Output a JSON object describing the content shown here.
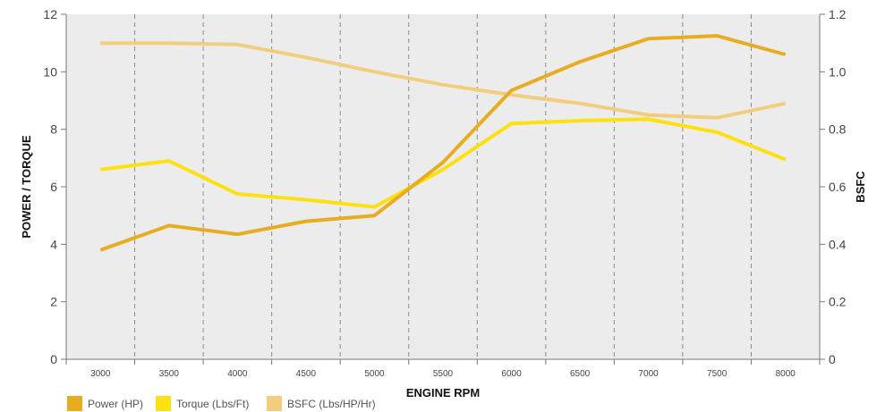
{
  "chart_data": {
    "type": "line",
    "xlabel": "ENGINE RPM",
    "ylabel_left": "POWER / TORQUE",
    "ylabel_right": "BSFC",
    "categories": [
      "3000",
      "3500",
      "4000",
      "4500",
      "5000",
      "5500",
      "6000",
      "6500",
      "7000",
      "7500",
      "8000"
    ],
    "y_left_ticks": [
      "0",
      "2",
      "4",
      "6",
      "8",
      "10",
      "12"
    ],
    "y_right_ticks": [
      "0",
      "0.2",
      "0.4",
      "0.6",
      "0.8",
      "1.0",
      "1.2"
    ],
    "ylim_left": [
      0,
      12
    ],
    "ylim_right": [
      0,
      1.2
    ],
    "grid": "vertical dashed",
    "legend_position": "bottom-left",
    "series": [
      {
        "name": "Power (HP)",
        "axis": "left",
        "color": "#e8ac22",
        "values": [
          3.8,
          4.65,
          4.35,
          4.8,
          5.0,
          6.85,
          9.35,
          10.35,
          11.15,
          11.25,
          10.6
        ]
      },
      {
        "name": "Torque (Lbs/Ft)",
        "axis": "left",
        "color": "#fce012",
        "values": [
          6.6,
          6.9,
          5.75,
          5.55,
          5.3,
          6.6,
          8.2,
          8.3,
          8.35,
          7.9,
          6.95
        ]
      },
      {
        "name": "BSFC (Lbs/HP/Hr)",
        "axis": "right",
        "color": "#f2cd7d",
        "values": [
          1.1,
          1.1,
          1.095,
          1.05,
          1.0,
          0.955,
          0.92,
          0.89,
          0.85,
          0.84,
          0.89
        ]
      }
    ]
  }
}
